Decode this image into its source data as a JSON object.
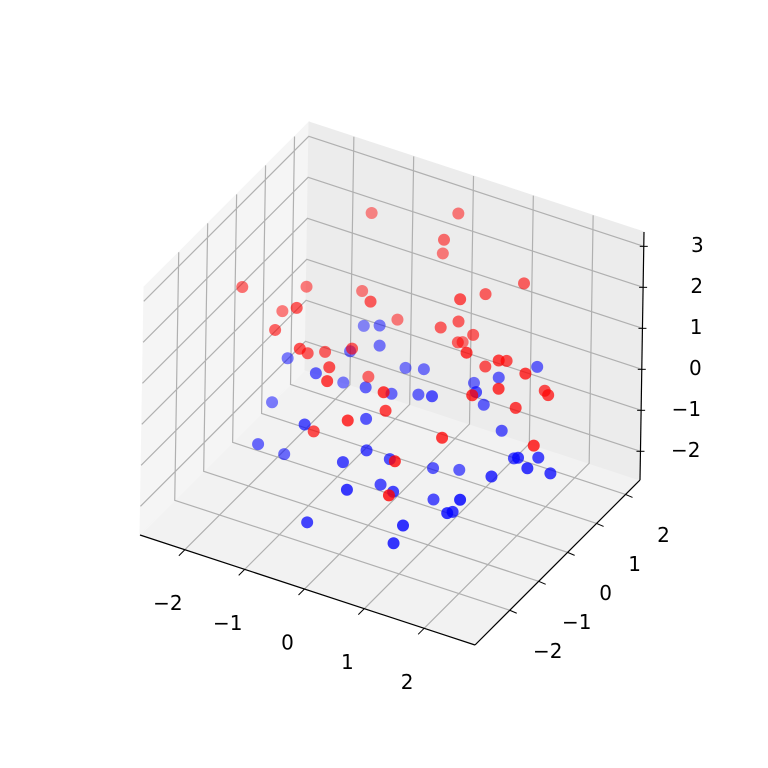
{
  "chart_data": {
    "type": "scatter3d",
    "xlim": [
      -2.75,
      2.85
    ],
    "ylim": [
      -3.2,
      2.5
    ],
    "zlim": [
      -2.7,
      3.35
    ],
    "xticks": [
      {
        "value": -2,
        "label": "−2"
      },
      {
        "value": -1,
        "label": "−1"
      },
      0,
      1,
      2
    ],
    "yticks": [
      {
        "value": -2,
        "label": "−2"
      },
      {
        "value": -1,
        "label": "−1"
      },
      0,
      1,
      2
    ],
    "zticks": [
      {
        "value": -2,
        "label": "−2"
      },
      {
        "value": -1,
        "label": "−1"
      },
      0,
      1,
      2,
      3
    ],
    "grid": true,
    "series": [
      {
        "color": "#0000ff",
        "x": [
          0.5,
          -1.2,
          1.8,
          -0.3,
          0.9,
          -2.0,
          1.2,
          0.1,
          -0.8,
          2.1,
          -1.5,
          0.7,
          -0.1,
          1.5,
          -0.6,
          0.3,
          -1.9,
          1.0,
          2.3,
          -0.4,
          0.8,
          -1.1,
          1.6,
          0.0,
          -0.7,
          0.4,
          1.9,
          -1.4,
          0.6,
          -0.2,
          1.3,
          -2.2,
          0.2,
          -0.9,
          1.1,
          2.0,
          -1.7,
          0.9,
          -0.5,
          1.4,
          0.3,
          -1.0,
          2.4,
          -0.3,
          0.6
        ],
        "y": [
          -1.2,
          0.8,
          -0.5,
          1.5,
          -2.0,
          0.3,
          1.1,
          -0.8,
          -1.6,
          0.5,
          1.9,
          -0.2,
          0.9,
          -1.4,
          0.1,
          2.0,
          -0.9,
          0.6,
          -0.3,
          -2.3,
          1.3,
          -0.6,
          0.7,
          -1.1,
          1.7,
          0.4,
          -1.8,
          1.0,
          -0.1,
          -1.5,
          2.1,
          0.2,
          -0.7,
          1.2,
          -2.1,
          0.0,
          -0.4,
          1.6,
          0.8,
          -1.0,
          -2.4,
          1.4,
          0.3,
          -0.5,
          0.9
        ],
        "z": [
          -1.5,
          -0.3,
          -1.0,
          -0.8,
          -2.0,
          -0.5,
          -1.3,
          -1.8,
          -0.2,
          -1.1,
          -0.6,
          -2.3,
          -0.9,
          -1.4,
          -0.4,
          -1.2,
          -1.7,
          -0.1,
          -0.7,
          -1.9,
          -1.0,
          0.2,
          -1.5,
          -0.8,
          -1.1,
          -2.1,
          -0.6,
          -1.3,
          0.1,
          -0.9,
          -0.4,
          -1.6,
          -1.2,
          -0.3,
          -1.4,
          -0.8,
          -2.2,
          -0.5,
          -1.0,
          -1.7,
          -0.7,
          0.0,
          -1.2,
          -0.6,
          -2.4
        ]
      },
      {
        "color": "#ff0000",
        "x": [
          -1.8,
          0.4,
          1.2,
          -0.6,
          2.0,
          -0.2,
          0.9,
          -1.3,
          1.6,
          0.1,
          -0.9,
          2.2,
          -0.4,
          0.7,
          -1.6,
          1.0,
          0.3,
          -2.1,
          1.4,
          -0.8,
          0.6,
          1.9,
          -0.1,
          -1.1,
          0.8,
          2.4,
          -0.5,
          1.1,
          -1.4,
          0.2,
          1.7,
          -0.7,
          0.5,
          -2.3,
          1.3,
          0.0,
          -1.0,
          2.1,
          0.9,
          -0.3,
          1.5,
          -1.2,
          0.4,
          1.8,
          -0.6
        ],
        "y": [
          0.5,
          -1.3,
          1.8,
          -0.4,
          0.9,
          -2.1,
          0.2,
          1.4,
          -0.8,
          2.0,
          -1.6,
          0.6,
          -0.2,
          1.1,
          -1.0,
          -2.4,
          0.8,
          0.3,
          -0.6,
          1.6,
          -1.8,
          0.1,
          2.2,
          -0.9,
          1.3,
          -0.3,
          -1.4,
          0.7,
          1.9,
          -2.2,
          -0.1,
          0.4,
          1.0,
          -0.7,
          -1.2,
          1.5,
          -0.5,
          0.0,
          -2.0,
          2.1,
          0.6,
          -1.1,
          1.2,
          -0.3,
          -1.7
        ],
        "z": [
          1.2,
          0.5,
          1.8,
          0.9,
          0.2,
          1.5,
          2.4,
          0.7,
          1.1,
          -0.3,
          1.6,
          0.4,
          2.0,
          0.8,
          1.3,
          -0.5,
          1.0,
          0.6,
          1.9,
          0.1,
          1.4,
          0.3,
          2.6,
          0.9,
          1.7,
          -0.1,
          1.2,
          0.5,
          2.2,
          0.8,
          1.5,
          -0.4,
          1.1,
          1.8,
          0.2,
          2.5,
          0.7,
          1.3,
          0.0,
          1.6,
          0.9,
          2.1,
          0.4,
          1.0,
          -0.2
        ]
      }
    ]
  }
}
